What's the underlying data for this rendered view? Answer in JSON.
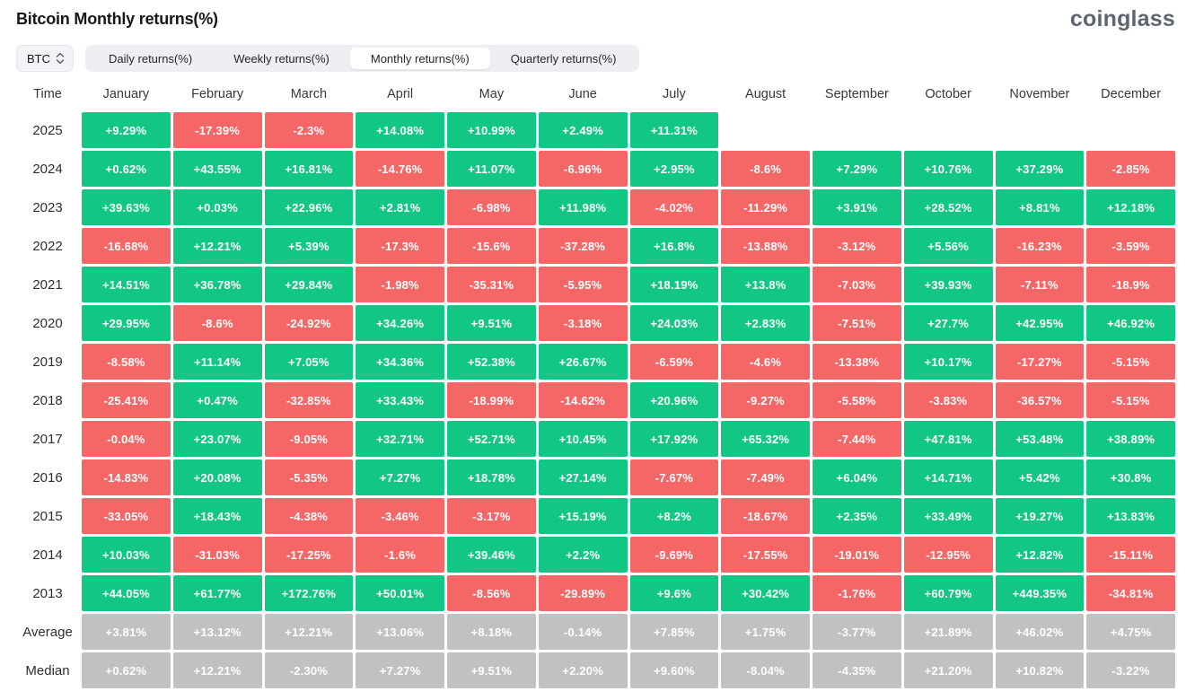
{
  "header": {
    "title": "Bitcoin Monthly returns(%)",
    "logo_text": "coinglass"
  },
  "toolbar": {
    "coin_selector": {
      "value": "BTC"
    },
    "tabs": [
      {
        "label": "Daily returns(%)",
        "active": false
      },
      {
        "label": "Weekly returns(%)",
        "active": false
      },
      {
        "label": "Monthly returns(%)",
        "active": true
      },
      {
        "label": "Quarterly returns(%)",
        "active": false
      }
    ]
  },
  "colors": {
    "positive": "#12c784",
    "negative": "#f56767",
    "neutral": "#c1c1c1"
  },
  "chart_data": {
    "type": "heatmap",
    "title": "Bitcoin Monthly returns(%)",
    "columns": [
      "Time",
      "January",
      "February",
      "March",
      "April",
      "May",
      "June",
      "July",
      "August",
      "September",
      "October",
      "November",
      "December"
    ],
    "rows": [
      {
        "label": "2025",
        "type": "year",
        "values": [
          "+9.29%",
          "-17.39%",
          "-2.3%",
          "+14.08%",
          "+10.99%",
          "+2.49%",
          "+11.31%",
          "",
          "",
          "",
          "",
          ""
        ]
      },
      {
        "label": "2024",
        "type": "year",
        "values": [
          "+0.62%",
          "+43.55%",
          "+16.81%",
          "-14.76%",
          "+11.07%",
          "-6.96%",
          "+2.95%",
          "-8.6%",
          "+7.29%",
          "+10.76%",
          "+37.29%",
          "-2.85%"
        ]
      },
      {
        "label": "2023",
        "type": "year",
        "values": [
          "+39.63%",
          "+0.03%",
          "+22.96%",
          "+2.81%",
          "-6.98%",
          "+11.98%",
          "-4.02%",
          "-11.29%",
          "+3.91%",
          "+28.52%",
          "+8.81%",
          "+12.18%"
        ]
      },
      {
        "label": "2022",
        "type": "year",
        "values": [
          "-16.68%",
          "+12.21%",
          "+5.39%",
          "-17.3%",
          "-15.6%",
          "-37.28%",
          "+16.8%",
          "-13.88%",
          "-3.12%",
          "+5.56%",
          "-16.23%",
          "-3.59%"
        ]
      },
      {
        "label": "2021",
        "type": "year",
        "values": [
          "+14.51%",
          "+36.78%",
          "+29.84%",
          "-1.98%",
          "-35.31%",
          "-5.95%",
          "+18.19%",
          "+13.8%",
          "-7.03%",
          "+39.93%",
          "-7.11%",
          "-18.9%"
        ]
      },
      {
        "label": "2020",
        "type": "year",
        "values": [
          "+29.95%",
          "-8.6%",
          "-24.92%",
          "+34.26%",
          "+9.51%",
          "-3.18%",
          "+24.03%",
          "+2.83%",
          "-7.51%",
          "+27.7%",
          "+42.95%",
          "+46.92%"
        ]
      },
      {
        "label": "2019",
        "type": "year",
        "values": [
          "-8.58%",
          "+11.14%",
          "+7.05%",
          "+34.36%",
          "+52.38%",
          "+26.67%",
          "-6.59%",
          "-4.6%",
          "-13.38%",
          "+10.17%",
          "-17.27%",
          "-5.15%"
        ]
      },
      {
        "label": "2018",
        "type": "year",
        "values": [
          "-25.41%",
          "+0.47%",
          "-32.85%",
          "+33.43%",
          "-18.99%",
          "-14.62%",
          "+20.96%",
          "-9.27%",
          "-5.58%",
          "-3.83%",
          "-36.57%",
          "-5.15%"
        ]
      },
      {
        "label": "2017",
        "type": "year",
        "values": [
          "-0.04%",
          "+23.07%",
          "-9.05%",
          "+32.71%",
          "+52.71%",
          "+10.45%",
          "+17.92%",
          "+65.32%",
          "-7.44%",
          "+47.81%",
          "+53.48%",
          "+38.89%"
        ]
      },
      {
        "label": "2016",
        "type": "year",
        "values": [
          "-14.83%",
          "+20.08%",
          "-5.35%",
          "+7.27%",
          "+18.78%",
          "+27.14%",
          "-7.67%",
          "-7.49%",
          "+6.04%",
          "+14.71%",
          "+5.42%",
          "+30.8%"
        ]
      },
      {
        "label": "2015",
        "type": "year",
        "values": [
          "-33.05%",
          "+18.43%",
          "-4.38%",
          "-3.46%",
          "-3.17%",
          "+15.19%",
          "+8.2%",
          "-18.67%",
          "+2.35%",
          "+33.49%",
          "+19.27%",
          "+13.83%"
        ]
      },
      {
        "label": "2014",
        "type": "year",
        "values": [
          "+10.03%",
          "-31.03%",
          "-17.25%",
          "-1.6%",
          "+39.46%",
          "+2.2%",
          "-9.69%",
          "-17.55%",
          "-19.01%",
          "-12.95%",
          "+12.82%",
          "-15.11%"
        ]
      },
      {
        "label": "2013",
        "type": "year",
        "values": [
          "+44.05%",
          "+61.77%",
          "+172.76%",
          "+50.01%",
          "-8.56%",
          "-29.89%",
          "+9.6%",
          "+30.42%",
          "-1.76%",
          "+60.79%",
          "+449.35%",
          "-34.81%"
        ]
      },
      {
        "label": "Average",
        "type": "summary",
        "values": [
          "+3.81%",
          "+13.12%",
          "+12.21%",
          "+13.06%",
          "+8.18%",
          "-0.14%",
          "+7.85%",
          "+1.75%",
          "-3.77%",
          "+21.89%",
          "+46.02%",
          "+4.75%"
        ]
      },
      {
        "label": "Median",
        "type": "summary",
        "values": [
          "+0.62%",
          "+12.21%",
          "-2.30%",
          "+7.27%",
          "+9.51%",
          "+2.20%",
          "+9.60%",
          "-8.04%",
          "-4.35%",
          "+21.20%",
          "+10.82%",
          "-3.22%"
        ]
      }
    ]
  }
}
